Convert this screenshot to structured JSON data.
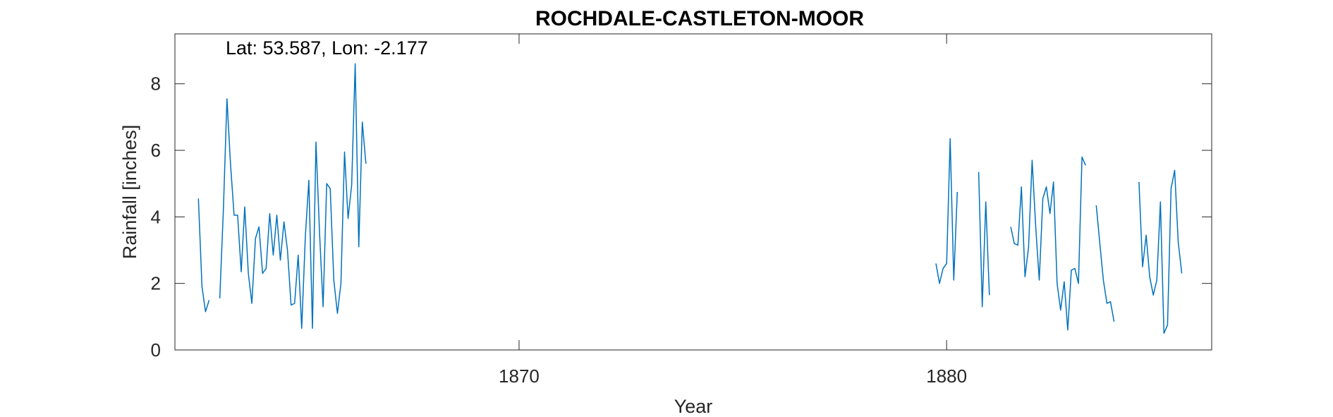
{
  "chart_data": {
    "type": "line",
    "title": "ROCHDALE-CASTLETON-MOOR",
    "annotation": "Lat: 53.587, Lon: -2.177",
    "xlabel": "Year",
    "ylabel": "Rainfall [inches]",
    "xlim": [
      1861.95,
      1886.2
    ],
    "ylim": [
      0,
      9.5
    ],
    "xticks": [
      1870,
      1880
    ],
    "yticks": [
      0,
      2,
      4,
      6,
      8
    ],
    "x_tick_labels": [
      "1870",
      "1880"
    ],
    "y_tick_labels": [
      "0",
      "2",
      "4",
      "6",
      "8"
    ],
    "grid": false,
    "series_color": "#0072bd",
    "series": [
      {
        "segments": [
          {
            "x_start": 1862.5,
            "values": [
              4.55,
              1.9,
              1.15,
              1.5
            ]
          },
          {
            "x_start": 1863.0,
            "values": [
              1.55,
              4.2,
              7.55,
              5.6,
              4.05,
              4.05,
              2.35,
              4.3,
              2.3,
              1.4,
              3.35,
              3.7,
              2.3,
              2.45,
              4.1,
              2.85,
              4.05,
              2.7,
              3.85,
              3.0,
              1.35,
              1.4,
              2.85,
              0.65,
              3.4,
              5.1,
              0.65,
              6.25,
              3.5,
              1.3,
              5.0,
              4.85,
              2.1,
              1.1,
              2.0,
              5.95,
              3.95,
              4.95,
              8.6,
              3.1,
              6.85,
              5.6
            ]
          },
          {
            "x_start": 1879.75,
            "values": [
              2.6,
              2.0,
              2.45,
              2.6,
              6.35,
              2.1,
              4.75
            ]
          },
          {
            "x_start": 1880.75,
            "values": [
              5.35,
              1.3,
              4.45,
              1.65
            ]
          },
          {
            "x_start": 1881.5,
            "values": [
              3.7,
              3.2,
              3.15,
              4.9,
              2.2,
              3.1,
              5.7,
              3.7,
              2.1,
              4.55,
              4.9,
              4.1,
              5.05,
              2.0,
              1.2,
              2.05,
              0.6,
              2.4,
              2.45,
              2.0,
              5.8,
              5.55
            ]
          },
          {
            "x_start": 1883.5,
            "values": [
              4.35,
              3.2,
              2.1,
              1.4,
              1.45,
              0.85
            ]
          },
          {
            "x_start": 1884.5,
            "values": [
              5.05,
              2.5,
              3.45,
              2.2,
              1.65,
              2.1,
              4.45,
              0.5,
              0.75,
              4.85,
              5.4,
              3.25,
              2.3
            ]
          }
        ]
      }
    ]
  }
}
